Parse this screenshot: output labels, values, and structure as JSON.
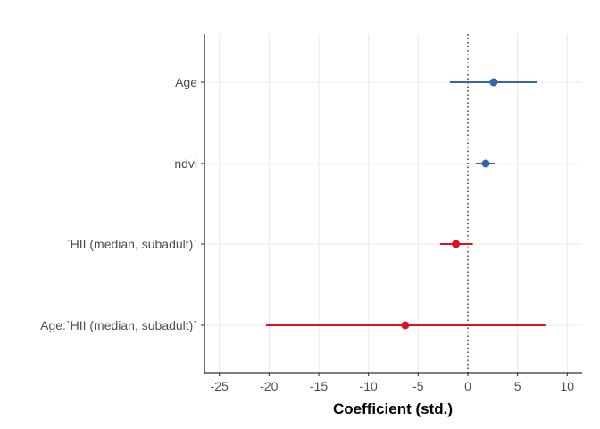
{
  "chart_data": {
    "type": "scatter",
    "subtype": "coefficient-plot",
    "title": "",
    "xlabel": "Coefficient (std.)",
    "ylabel": "",
    "xlim": [
      -26.5,
      11.5
    ],
    "x_ticks": [
      -25,
      -20,
      -15,
      -10,
      -5,
      0,
      5,
      10
    ],
    "reference_line": {
      "x": 0,
      "style": "dotted",
      "color": "#000000"
    },
    "grid": true,
    "legend": "none",
    "terms": [
      {
        "label": "Age",
        "estimate": 2.6,
        "ci_low": -1.8,
        "ci_high": 7.0,
        "color": "#3366aa"
      },
      {
        "label": "ndvi",
        "estimate": 1.8,
        "ci_low": 0.8,
        "ci_high": 2.7,
        "color": "#3366aa"
      },
      {
        "label": "`HII (median, subadult)`",
        "estimate": -1.2,
        "ci_low": -2.8,
        "ci_high": 0.5,
        "color": "#dd1122"
      },
      {
        "label": "Age:`HII (median, subadult)`",
        "estimate": -6.3,
        "ci_low": -20.3,
        "ci_high": 7.8,
        "color": "#dd1122"
      }
    ]
  }
}
